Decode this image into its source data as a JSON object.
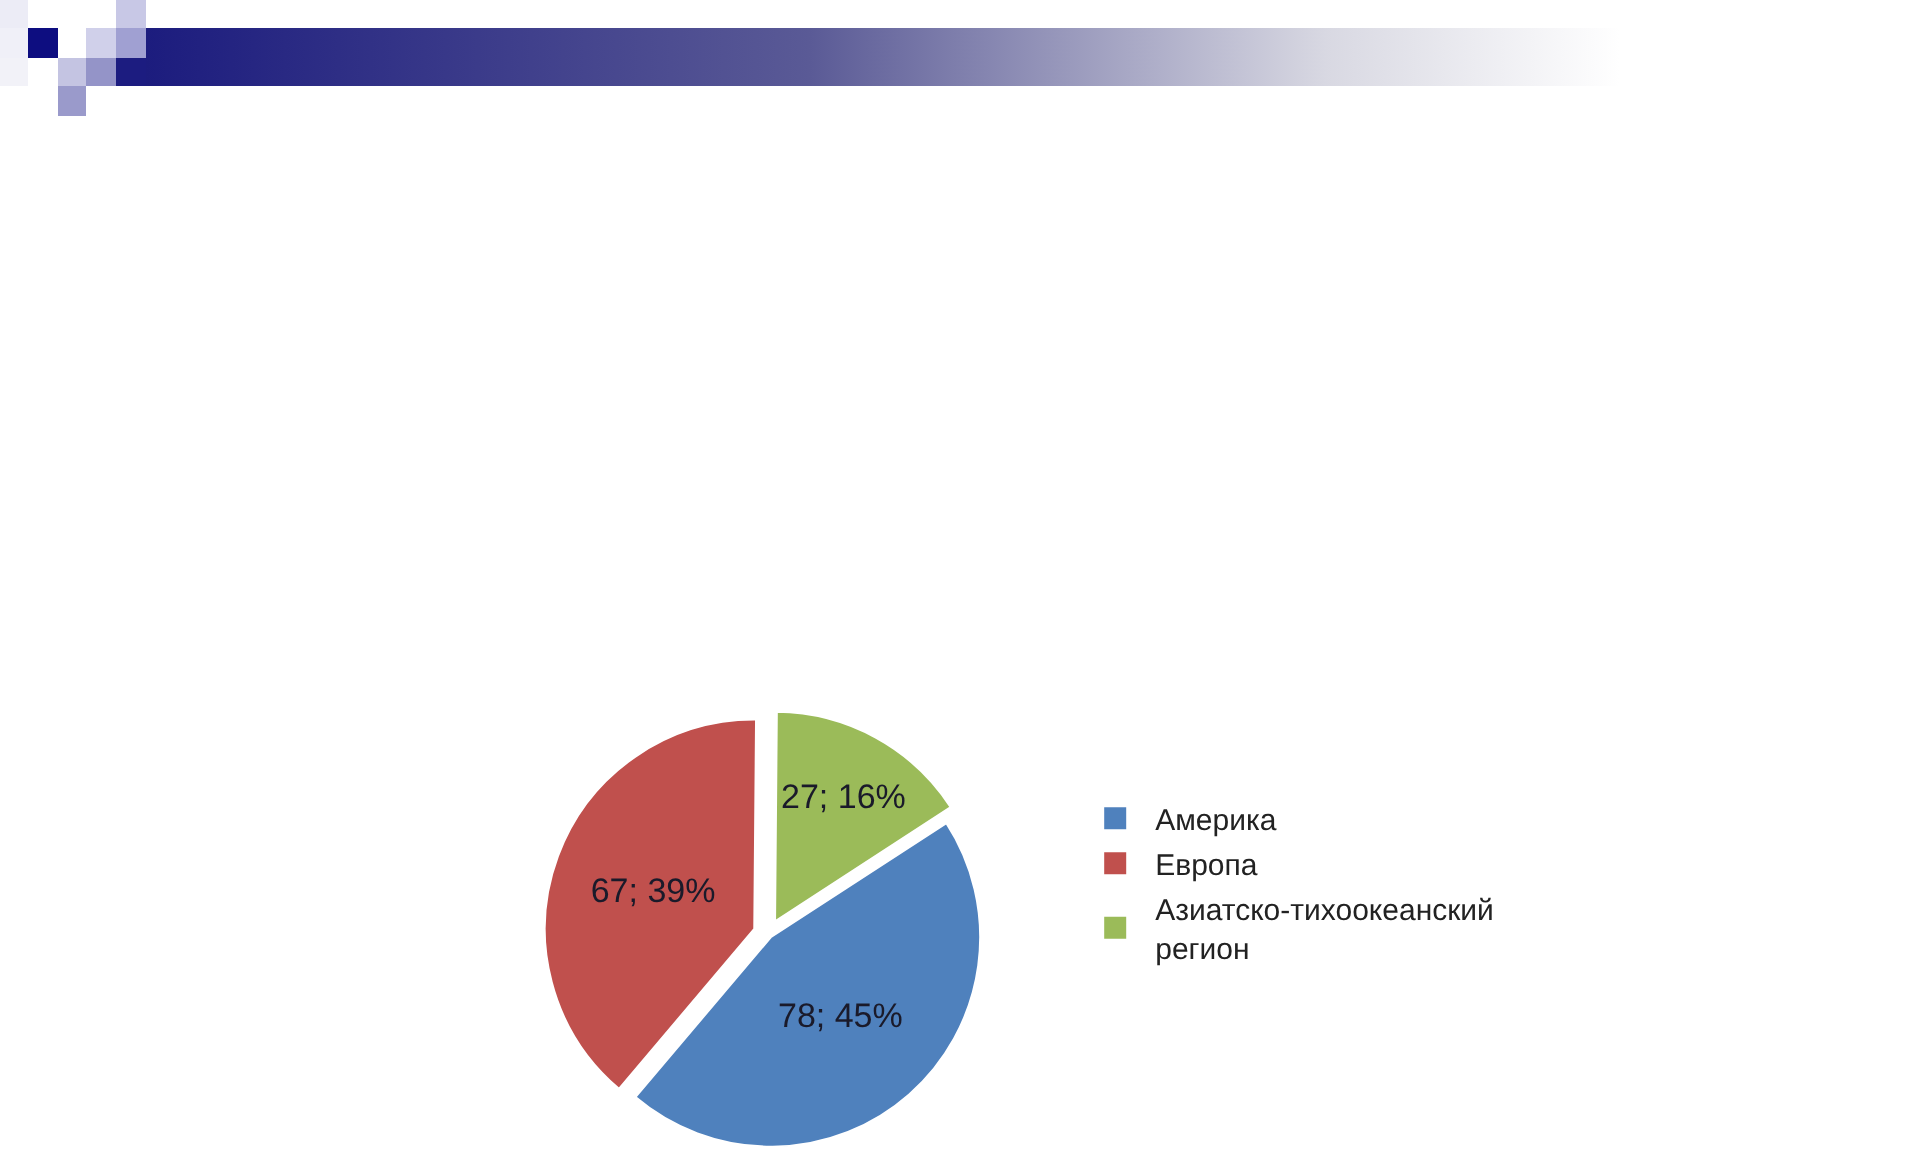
{
  "chart_data": {
    "type": "pie",
    "categories": [
      "Америка",
      "Европа",
      "Азиатско-тихоокеанский регион"
    ],
    "values": [
      78,
      67,
      27
    ],
    "colors": [
      "#4f81bd",
      "#c0504d",
      "#9bbb59"
    ],
    "value_labels": [
      "78; 45%",
      "67; 39%",
      "27; 16%"
    ],
    "legend": "right"
  }
}
